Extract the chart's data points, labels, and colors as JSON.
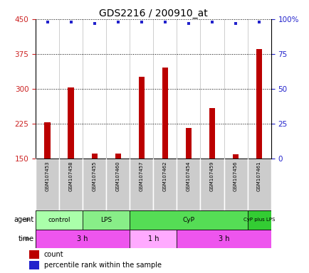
{
  "title": "GDS2216 / 200910_at",
  "samples": [
    "GSM107453",
    "GSM107458",
    "GSM107455",
    "GSM107460",
    "GSM107457",
    "GSM107462",
    "GSM107454",
    "GSM107459",
    "GSM107456",
    "GSM107461"
  ],
  "counts": [
    228,
    303,
    160,
    160,
    325,
    345,
    215,
    258,
    158,
    385
  ],
  "percentile_ranks": [
    98,
    98,
    97,
    98,
    98,
    98,
    97,
    98,
    97,
    98
  ],
  "ylim_left": [
    150,
    450
  ],
  "ylim_right": [
    0,
    100
  ],
  "yticks_left": [
    150,
    225,
    300,
    375,
    450
  ],
  "yticks_right": [
    0,
    25,
    50,
    75,
    100
  ],
  "bar_color": "#bb0000",
  "dot_color": "#2222cc",
  "bar_bottom": 150,
  "bar_width": 0.25,
  "agent_groups": [
    {
      "label": "control",
      "start": 0,
      "end": 2,
      "color": "#aaffaa"
    },
    {
      "label": "LPS",
      "start": 2,
      "end": 4,
      "color": "#88ee88"
    },
    {
      "label": "CyP",
      "start": 4,
      "end": 9,
      "color": "#55dd55"
    },
    {
      "label": "CyP plus LPS",
      "start": 9,
      "end": 10,
      "color": "#33cc33"
    }
  ],
  "time_groups": [
    {
      "label": "3 h",
      "start": 0,
      "end": 4,
      "color": "#ee55ee"
    },
    {
      "label": "1 h",
      "start": 4,
      "end": 6,
      "color": "#ffaaff"
    },
    {
      "label": "3 h",
      "start": 6,
      "end": 10,
      "color": "#ee55ee"
    }
  ],
  "agent_label": "agent",
  "time_label": "time",
  "legend_count_label": "count",
  "legend_pct_label": "percentile rank within the sample",
  "grid_color": "#000000",
  "background_color": "#ffffff",
  "tick_label_color_left": "#cc2222",
  "tick_label_color_right": "#2222cc",
  "sample_bg_color": "#cccccc",
  "sample_border_color": "#ffffff",
  "sep_line_color": "#888888"
}
